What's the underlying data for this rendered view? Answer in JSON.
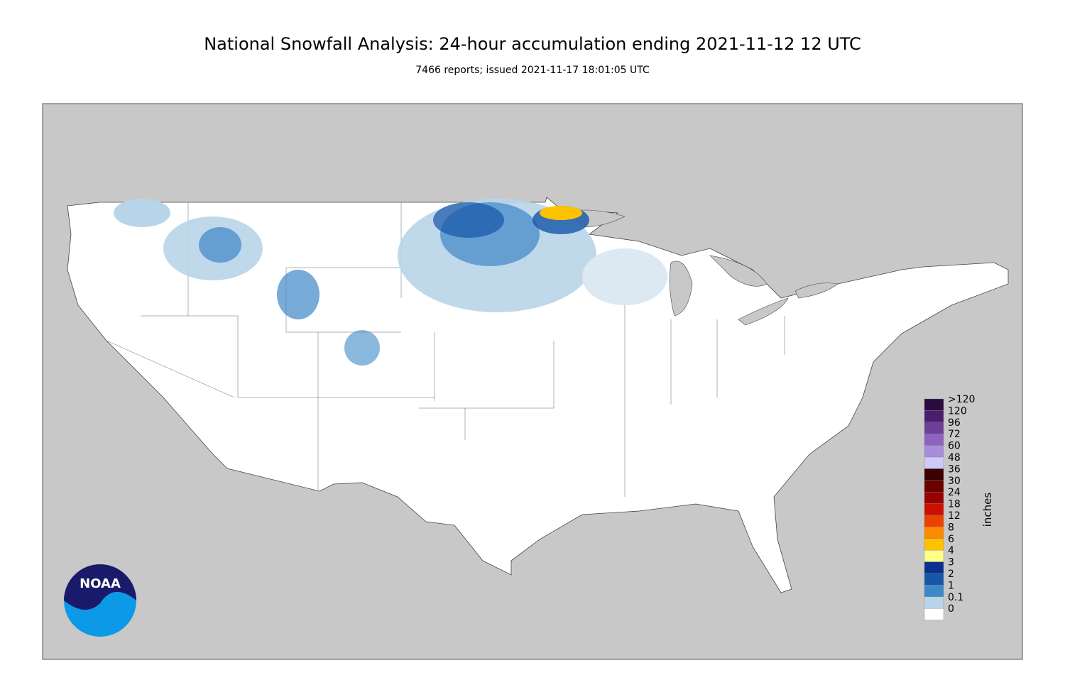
{
  "header": {
    "title": "National Snowfall Analysis: 24-hour accumulation ending 2021-11-12 12 UTC",
    "subtitle": "7466 reports; issued 2021-11-17 18:01:05 UTC"
  },
  "legend": {
    "unit": "inches",
    "items": [
      {
        "label": ">120",
        "color": "#2b0a3d"
      },
      {
        "label": "120",
        "color": "#4c1d6e"
      },
      {
        "label": "96",
        "color": "#6c3f99"
      },
      {
        "label": "72",
        "color": "#8d63bf"
      },
      {
        "label": "60",
        "color": "#a88ddb"
      },
      {
        "label": "48",
        "color": "#cfc9f7"
      },
      {
        "label": "36",
        "color": "#3c0000"
      },
      {
        "label": "30",
        "color": "#6b0000"
      },
      {
        "label": "24",
        "color": "#9a0000"
      },
      {
        "label": "18",
        "color": "#cb0f00"
      },
      {
        "label": "12",
        "color": "#eb4200"
      },
      {
        "label": "8",
        "color": "#ff8a00"
      },
      {
        "label": "6",
        "color": "#ffc200"
      },
      {
        "label": "4",
        "color": "#ffff8a"
      },
      {
        "label": "3",
        "color": "#0a2f8c"
      },
      {
        "label": "2",
        "color": "#1656a8"
      },
      {
        "label": "1",
        "color": "#3e88c7"
      },
      {
        "label": "0.1",
        "color": "#b8d4e8"
      },
      {
        "label": "0",
        "color": "#ffffff"
      }
    ]
  },
  "logo": {
    "text": "NOAA"
  }
}
